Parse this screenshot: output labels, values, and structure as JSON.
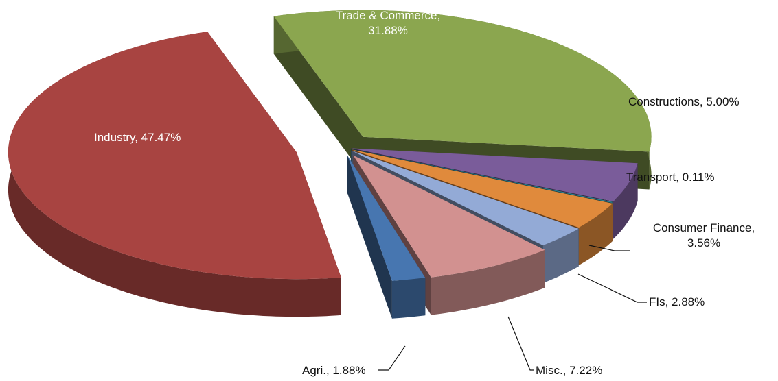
{
  "chart_data": {
    "type": "pie",
    "categories": [
      "Trade & Commerce",
      "Constructions",
      "Transport",
      "Consumer Finance",
      "FIs",
      "Misc.",
      "Agri.",
      "Industry"
    ],
    "values": [
      31.88,
      5.0,
      0.11,
      3.56,
      2.88,
      7.22,
      1.88,
      47.47
    ],
    "labels": [
      "Trade & Commerce, 31.88%",
      "Constructions, 5.00%",
      "Transport, 0.11%",
      "Consumer Finance, 3.56%",
      "FIs, 2.88%",
      "Misc., 7.22%",
      "Agri., 1.88%",
      "Industry, 47.47%"
    ],
    "colors": [
      "#8ba64f",
      "#7a5c9a",
      "#2e8190",
      "#e08a3c",
      "#93aad6",
      "#d29190",
      "#4776b0",
      "#a84441"
    ]
  }
}
